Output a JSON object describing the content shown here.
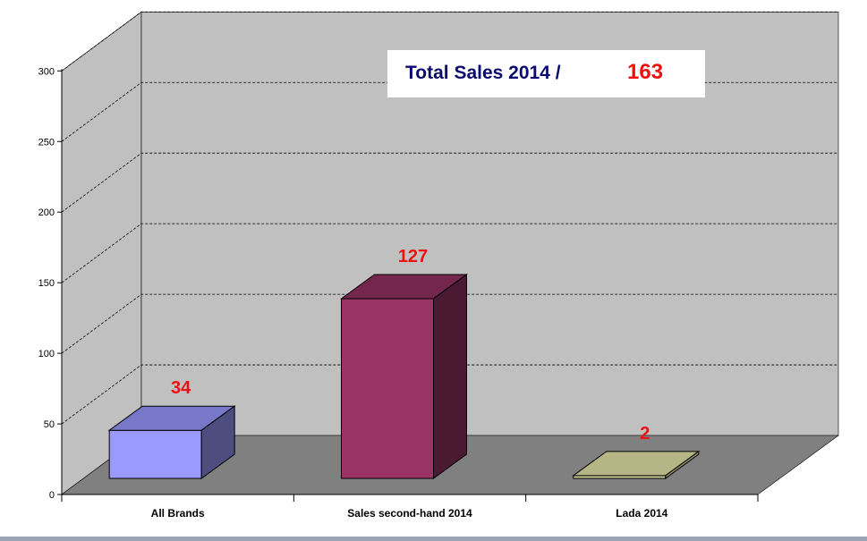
{
  "colors": {
    "back_wall": "#c0c0c0",
    "side_wall": "#c0c0c0",
    "floor": "#808080",
    "label_red": "#ee1111",
    "title_navy": "#0a0a6e"
  },
  "total_box": {
    "title": "Total Sales 2014 /",
    "value": "163"
  },
  "chart_data": {
    "type": "bar",
    "title": "",
    "xlabel": "",
    "ylabel": "",
    "ylim": [
      0,
      300
    ],
    "yticks": [
      0,
      50,
      100,
      150,
      200,
      250,
      300
    ],
    "grid": true,
    "categories": [
      "All Brands",
      "Sales second-hand 2014",
      "Lada 2014"
    ],
    "values": [
      34,
      127,
      2
    ],
    "data_labels": [
      "34",
      "127",
      "2"
    ],
    "bar_colors": [
      {
        "front": "#9999ff",
        "top": "#7878c8",
        "side": "#4d4d80"
      },
      {
        "front": "#993366",
        "top": "#74264d",
        "side": "#4a1a33"
      },
      {
        "front": "#cccc99",
        "top": "#b5b585",
        "side": "#8f8f66"
      }
    ]
  }
}
